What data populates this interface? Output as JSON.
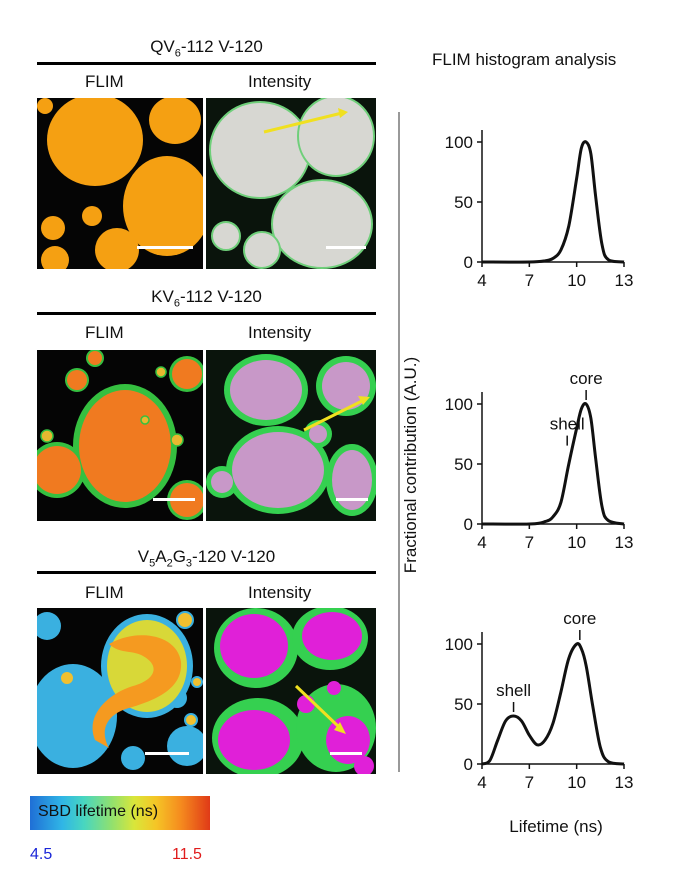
{
  "rows": [
    {
      "title_main": "QV",
      "title_sub": "6",
      "title_rest": "-112 V-120",
      "flim_label": "FLIM",
      "intensity_label": "Intensity",
      "histogram": {
        "peak_labels": []
      }
    },
    {
      "title_main": "KV",
      "title_sub": "6",
      "title_rest": "-112 V-120",
      "flim_label": "FLIM",
      "intensity_label": "Intensity",
      "histogram": {
        "peak_labels": [
          "shell",
          "core"
        ]
      }
    },
    {
      "title_main": "V",
      "title_sub": "5",
      "title_mid": "A",
      "title_sub2": "2",
      "title_mid2": "G",
      "title_sub3": "3",
      "title_rest": "-120 V-120",
      "flim_label": "FLIM",
      "intensity_label": "Intensity",
      "histogram": {
        "peak_labels": [
          "shell",
          "core"
        ]
      }
    }
  ],
  "histogram_header": "FLIM histogram analysis",
  "chart_data": [
    {
      "type": "line",
      "x": [
        4,
        7,
        8,
        8.5,
        9,
        9.5,
        10,
        10.3,
        10.6,
        10.9,
        11.2,
        11.6,
        12,
        13
      ],
      "values": [
        0,
        0,
        1,
        3,
        10,
        30,
        70,
        95,
        100,
        90,
        55,
        15,
        2,
        0
      ],
      "xticks": [
        4,
        7,
        10,
        13
      ],
      "yticks": [
        0,
        50,
        100
      ],
      "xlim": [
        4,
        13
      ],
      "ylim": [
        0,
        110
      ]
    },
    {
      "type": "line",
      "x": [
        4,
        7,
        8,
        8.5,
        9,
        9.5,
        10,
        10.3,
        10.6,
        10.9,
        11.2,
        11.6,
        12,
        13
      ],
      "values": [
        0,
        0,
        2,
        6,
        18,
        50,
        80,
        96,
        100,
        88,
        55,
        15,
        3,
        0
      ],
      "xticks": [
        4,
        7,
        10,
        13
      ],
      "yticks": [
        0,
        50,
        100
      ],
      "xlim": [
        4,
        13
      ],
      "ylim": [
        0,
        110
      ],
      "annotations": [
        {
          "text": "shell",
          "x": 9.4,
          "y": 62
        },
        {
          "text": "core",
          "x": 10.6,
          "y": 100
        }
      ]
    },
    {
      "type": "line",
      "x": [
        4,
        4.5,
        5,
        5.5,
        6,
        6.5,
        7,
        7.5,
        8,
        8.5,
        9,
        9.5,
        10,
        10.3,
        10.6,
        11,
        11.5,
        12,
        13
      ],
      "values": [
        0,
        3,
        20,
        36,
        40,
        36,
        24,
        16,
        20,
        34,
        60,
        88,
        100,
        96,
        82,
        50,
        14,
        2,
        0
      ],
      "xticks": [
        4,
        7,
        10,
        13
      ],
      "yticks": [
        0,
        50,
        100
      ],
      "xlim": [
        4,
        13
      ],
      "ylim": [
        0,
        110
      ],
      "annotations": [
        {
          "text": "shell",
          "x": 6,
          "y": 40
        },
        {
          "text": "core",
          "x": 10.2,
          "y": 100
        }
      ]
    }
  ],
  "y_axis_label": "Fractional contribution (A.U.)",
  "x_axis_label": "Lifetime (ns)",
  "legend": {
    "label": "SBD lifetime (ns)",
    "min": "4.5",
    "max": "11.5"
  },
  "colors": {
    "flim_orange": "#f5a012",
    "intensity_gray": "#d7d7d2",
    "magenta": "#e020d8",
    "green": "#35d050",
    "arrow": "#f0e020"
  }
}
